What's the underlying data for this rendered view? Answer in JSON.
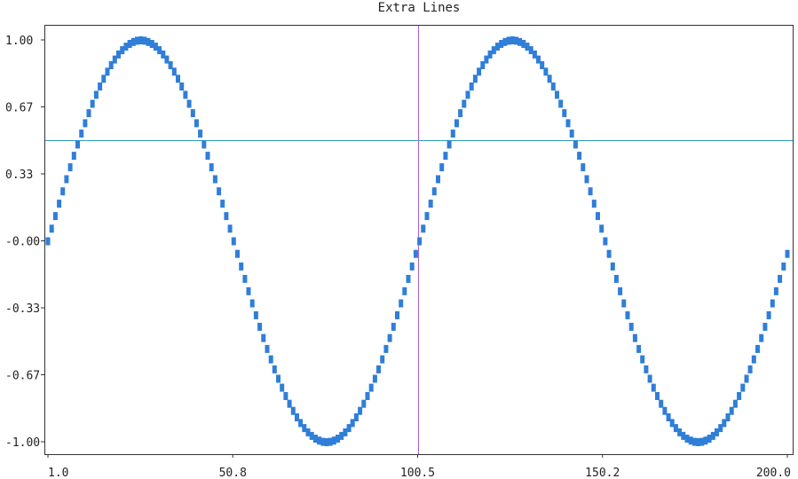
{
  "chart_data": {
    "type": "scatter",
    "title": "Extra Lines",
    "xlabel": "",
    "ylabel": "",
    "xlim": [
      1.0,
      200.0
    ],
    "ylim": [
      -1.0,
      1.0
    ],
    "x_ticks": [
      "1.0",
      "50.8",
      "100.5",
      "150.2",
      "200.0"
    ],
    "y_ticks": [
      "1.00",
      "0.67",
      "0.33",
      "-0.00",
      "-0.33",
      "-0.67",
      "-1.00"
    ],
    "grid": false,
    "legend": "none",
    "series": [
      {
        "function": "sin(2*pi*(x-1)/100)",
        "x_start": 1.0,
        "x_end": 200.0,
        "point_count": 200,
        "color": "#2f7ed8"
      }
    ],
    "extra_lines": [
      {
        "orientation": "horizontal",
        "y": 0.5,
        "color": "#2e9ec2"
      },
      {
        "orientation": "vertical",
        "x": 100.5,
        "color": "#b05cd6"
      }
    ]
  }
}
